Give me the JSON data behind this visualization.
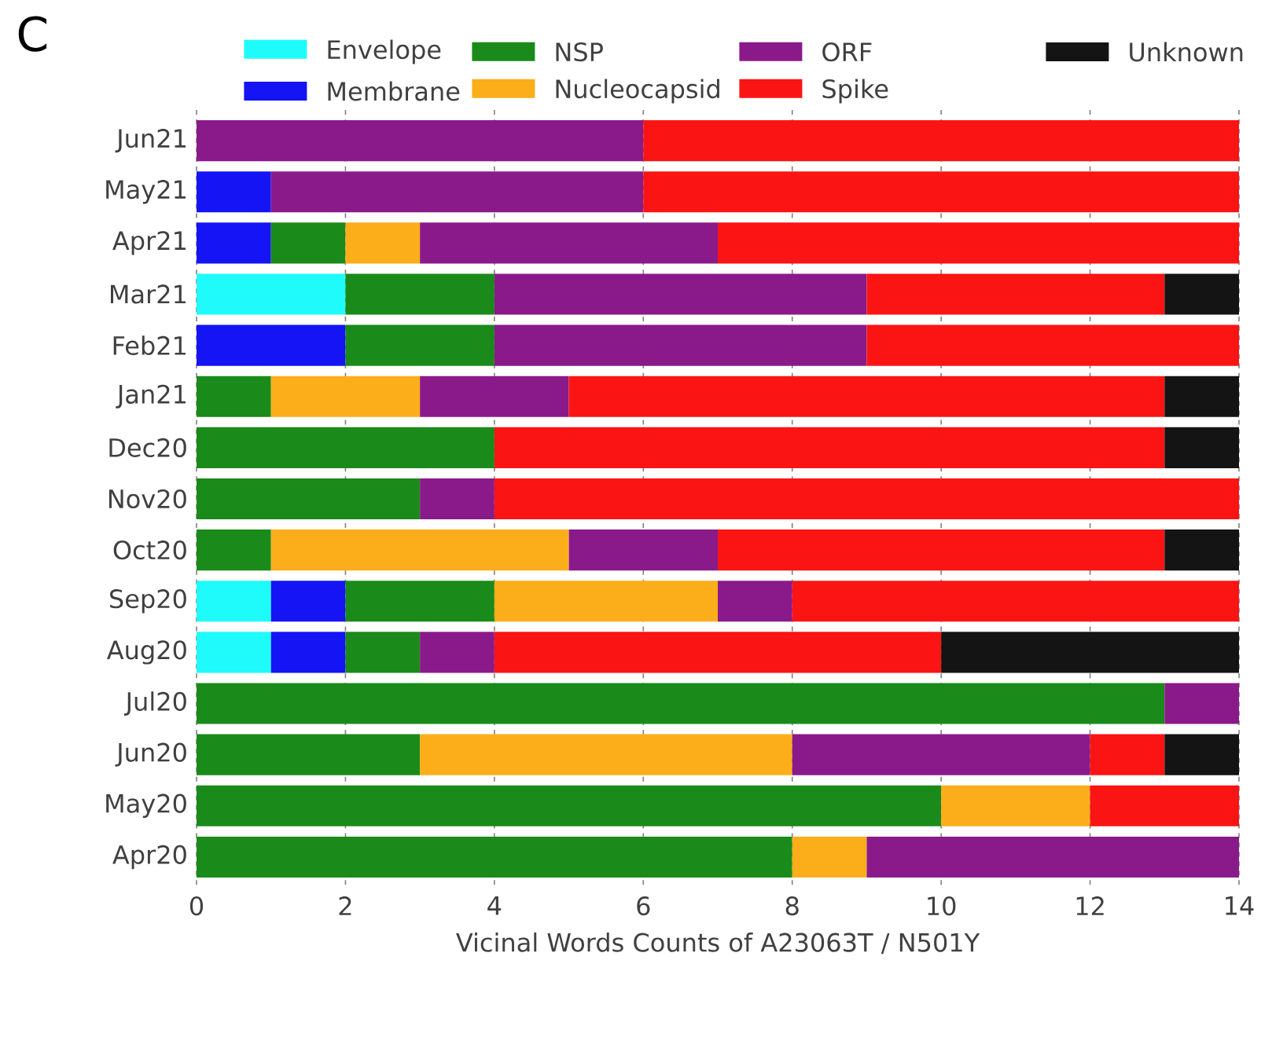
{
  "chart_data": {
    "type": "bar",
    "orientation": "horizontal",
    "stacked": true,
    "title": "C",
    "xlabel": "Vicinal Words Counts of A23063T / N501Y",
    "categories": [
      "Jun21",
      "May21",
      "Apr21",
      "Mar21",
      "Feb21",
      "Jan21",
      "Dec20",
      "Nov20",
      "Oct20",
      "Sep20",
      "Aug20",
      "Jul20",
      "Jun20",
      "May20",
      "Apr20"
    ],
    "series": [
      {
        "name": "Envelope",
        "color": "#1ffbfb",
        "values": [
          null,
          null,
          null,
          2,
          null,
          null,
          null,
          null,
          null,
          1,
          1,
          null,
          null,
          null,
          null
        ]
      },
      {
        "name": "Membrane",
        "color": "#1414f5",
        "values": [
          null,
          1,
          1,
          null,
          2,
          null,
          null,
          null,
          null,
          1,
          1,
          null,
          null,
          null,
          null
        ]
      },
      {
        "name": "NSP",
        "color": "#1a8a1a",
        "values": [
          null,
          null,
          1,
          2,
          2,
          1,
          4,
          3,
          1,
          2,
          1,
          13,
          3,
          10,
          8
        ]
      },
      {
        "name": "Nucleocapsid",
        "color": "#fbae1a",
        "values": [
          null,
          null,
          1,
          null,
          null,
          2,
          null,
          null,
          4,
          3,
          null,
          null,
          5,
          2,
          1
        ]
      },
      {
        "name": "ORF",
        "color": "#8a1a8a",
        "values": [
          6,
          5,
          4,
          5,
          5,
          2,
          null,
          1,
          2,
          1,
          1,
          1,
          4,
          null,
          5
        ]
      },
      {
        "name": "Spike",
        "color": "#fb1414",
        "values": [
          8,
          8,
          7,
          4,
          5,
          8,
          9,
          10,
          6,
          6,
          6,
          null,
          1,
          2,
          null
        ]
      },
      {
        "name": "Unknown",
        "color": "#141414",
        "values": [
          null,
          null,
          null,
          1,
          null,
          1,
          1,
          null,
          1,
          null,
          4,
          null,
          1,
          null,
          null
        ]
      }
    ],
    "xlim": [
      0,
      14
    ],
    "xticks": [
      0,
      2,
      4,
      6,
      8,
      10,
      12,
      14
    ],
    "grid": "x",
    "legend": "top"
  }
}
